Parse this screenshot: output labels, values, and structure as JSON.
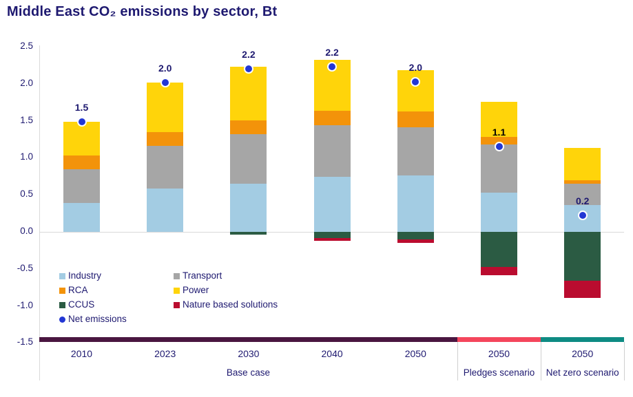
{
  "chart_data": {
    "type": "bar",
    "stacked": true,
    "title": "Middle East CO₂ emissions by sector, Bt",
    "unit": "Bt",
    "ylim": [
      -1.5,
      2.5
    ],
    "grid": "zero-line-only",
    "legend_position": "inside-lower-left",
    "y_axis": {
      "ticks": [
        "2.5",
        "2.0",
        "1.5",
        "1.0",
        "0.5",
        "0.0",
        "-0.5",
        "-1.0",
        "-1.5"
      ]
    },
    "categories": [
      "2010",
      "2023",
      "2030",
      "2040",
      "2050",
      "2050",
      "2050"
    ],
    "groups": [
      {
        "label": "Base case",
        "first": 0,
        "last": 4,
        "band_color": "#4A1640"
      },
      {
        "label": "Pledges scenario",
        "first": 5,
        "last": 5,
        "band_color": "#F4465C"
      },
      {
        "label": "Net zero scenario",
        "first": 6,
        "last": 6,
        "band_color": "#0E8B83"
      }
    ],
    "series": [
      {
        "name": "Industry",
        "color": "#A3CCE3",
        "values": [
          0.39,
          0.59,
          0.65,
          0.74,
          0.76,
          0.53,
          0.36
        ]
      },
      {
        "name": "Transport",
        "color": "#A6A6A6",
        "values": [
          0.46,
          0.57,
          0.67,
          0.7,
          0.65,
          0.65,
          0.29
        ]
      },
      {
        "name": "RCA",
        "color": "#F3930A",
        "values": [
          0.18,
          0.19,
          0.19,
          0.2,
          0.22,
          0.1,
          0.05
        ]
      },
      {
        "name": "Power",
        "color": "#FFD40A",
        "values": [
          0.46,
          0.67,
          0.72,
          0.68,
          0.55,
          0.48,
          0.43
        ]
      },
      {
        "name": "CCUS",
        "color": "#2B5B43",
        "values": [
          0,
          0,
          -0.04,
          -0.08,
          -0.1,
          -0.47,
          -0.66
        ]
      },
      {
        "name": "Nature based solutions",
        "color": "#BA0C2F",
        "values": [
          0,
          0,
          0,
          -0.04,
          -0.05,
          -0.12,
          -0.23
        ]
      }
    ],
    "net_emissions": {
      "name": "Net emissions",
      "dot_color": "#2337D4",
      "values": [
        1.49,
        2.02,
        2.2,
        2.23,
        2.03,
        1.15,
        0.22
      ],
      "labels": [
        "1.5",
        "2.0",
        "2.2",
        "2.2",
        "2.0",
        "1.1",
        "0.2"
      ],
      "label_colors": [
        "#1E1970",
        "#1E1970",
        "#1E1970",
        "#1E1970",
        "#1E1970",
        "#000000",
        "#1E1970"
      ]
    },
    "legend": {
      "items": [
        {
          "label": "Industry",
          "color": "#A3CCE3",
          "marker": "square",
          "col": 0,
          "row": 0
        },
        {
          "label": "Transport",
          "color": "#A6A6A6",
          "marker": "square",
          "col": 1,
          "row": 0
        },
        {
          "label": "RCA",
          "color": "#F3930A",
          "marker": "square",
          "col": 0,
          "row": 1
        },
        {
          "label": "Power",
          "color": "#FFD40A",
          "marker": "square",
          "col": 1,
          "row": 1
        },
        {
          "label": "CCUS",
          "color": "#2B5B43",
          "marker": "square",
          "col": 0,
          "row": 2
        },
        {
          "label": "Nature based solutions",
          "color": "#BA0C2F",
          "marker": "square",
          "col": 1,
          "row": 2
        },
        {
          "label": "Net emissions",
          "color": "#2337D4",
          "marker": "dot",
          "col": 0,
          "row": 3
        }
      ]
    },
    "style": {
      "text_navy": "#1E1970",
      "axis_line_gray": "#D9D9D9",
      "background": "#FFFFFF"
    }
  }
}
